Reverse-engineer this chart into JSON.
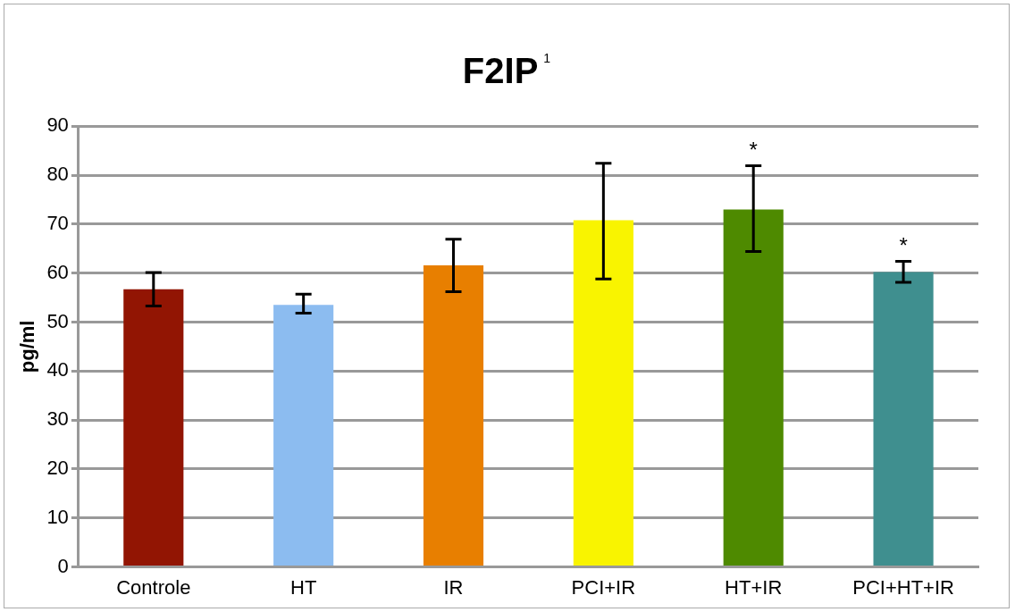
{
  "chart_data": {
    "type": "bar",
    "title": "F2IP$^{1}$",
    "ylabel": "pg/ml",
    "categories": [
      "Controle",
      "HT",
      "IR",
      "PCI+IR",
      "HT+IR",
      "PCI+HT+IR"
    ],
    "values": [
      56.7,
      53.5,
      61.6,
      70.8,
      73.0,
      60.2
    ],
    "colors": [
      "#921503",
      "#8cbcf0",
      "#e87f00",
      "#f9f400",
      "#4e8a00",
      "#3f8f8f"
    ],
    "errors": [
      [
        53.3,
        60.1
      ],
      [
        51.8,
        55.7
      ],
      [
        56.2,
        66.9
      ],
      [
        58.8,
        82.4
      ],
      [
        64.4,
        81.9
      ],
      [
        58.1,
        62.4
      ]
    ],
    "ylim": [
      0,
      90
    ],
    "yticks": [
      0,
      10,
      20,
      30,
      40,
      50,
      60,
      70,
      80,
      90
    ],
    "grid": "y",
    "annotations": [
      {
        "text": "*",
        "x": "HT+IR",
        "y": 81.9
      },
      {
        "text": "*",
        "x": "PCI+HT+IR",
        "y": 62.4
      }
    ]
  }
}
